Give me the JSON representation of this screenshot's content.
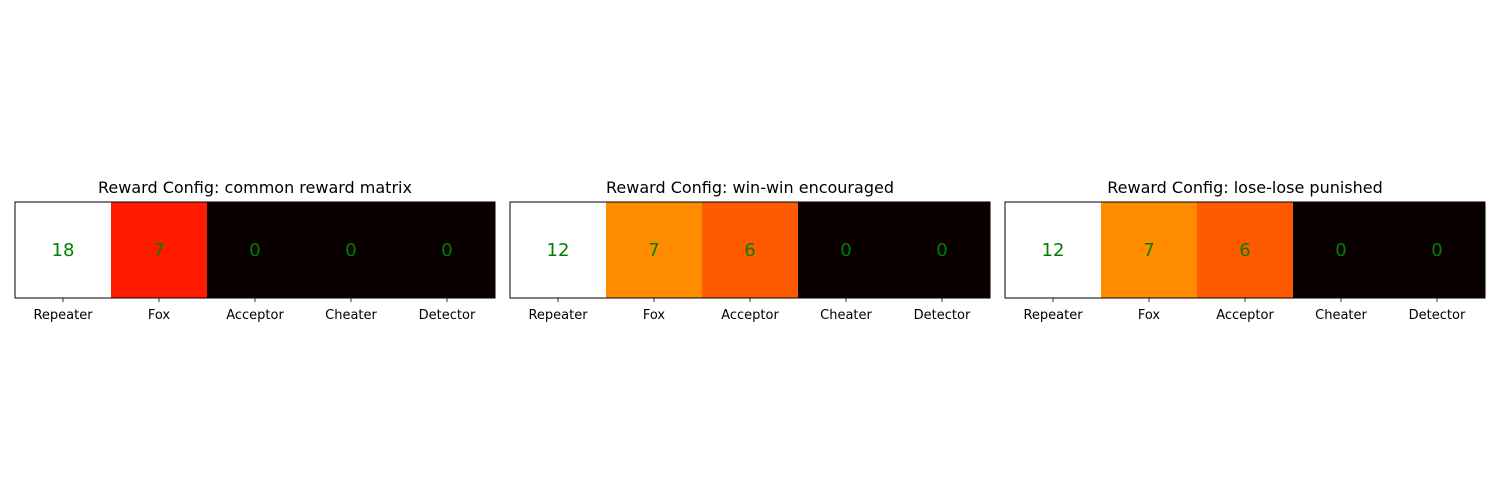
{
  "chart_data": [
    {
      "type": "heatmap",
      "title": "Reward Config: common reward matrix",
      "categories": [
        "Repeater",
        "Fox",
        "Acceptor",
        "Cheater",
        "Detector"
      ],
      "values": [
        18,
        7,
        0,
        0,
        0
      ],
      "colors": [
        "#ffffff",
        "#ff1a00",
        "#0b0000",
        "#0b0000",
        "#0b0000"
      ],
      "colormap": "hot",
      "grid": false
    },
    {
      "type": "heatmap",
      "title": "Reward Config: win-win encouraged",
      "categories": [
        "Repeater",
        "Fox",
        "Acceptor",
        "Cheater",
        "Detector"
      ],
      "values": [
        12,
        7,
        6,
        0,
        0
      ],
      "colors": [
        "#ffffff",
        "#ff8c00",
        "#ff5a00",
        "#0b0000",
        "#0b0000"
      ],
      "colormap": "hot",
      "grid": false
    },
    {
      "type": "heatmap",
      "title": "Reward Config: lose-lose punished",
      "categories": [
        "Repeater",
        "Fox",
        "Acceptor",
        "Cheater",
        "Detector"
      ],
      "values": [
        12,
        7,
        6,
        0,
        0
      ],
      "colors": [
        "#ffffff",
        "#ff8c00",
        "#ff5a00",
        "#0b0000",
        "#0b0000"
      ],
      "colormap": "hot",
      "grid": false
    }
  ],
  "label_color": "#008000"
}
